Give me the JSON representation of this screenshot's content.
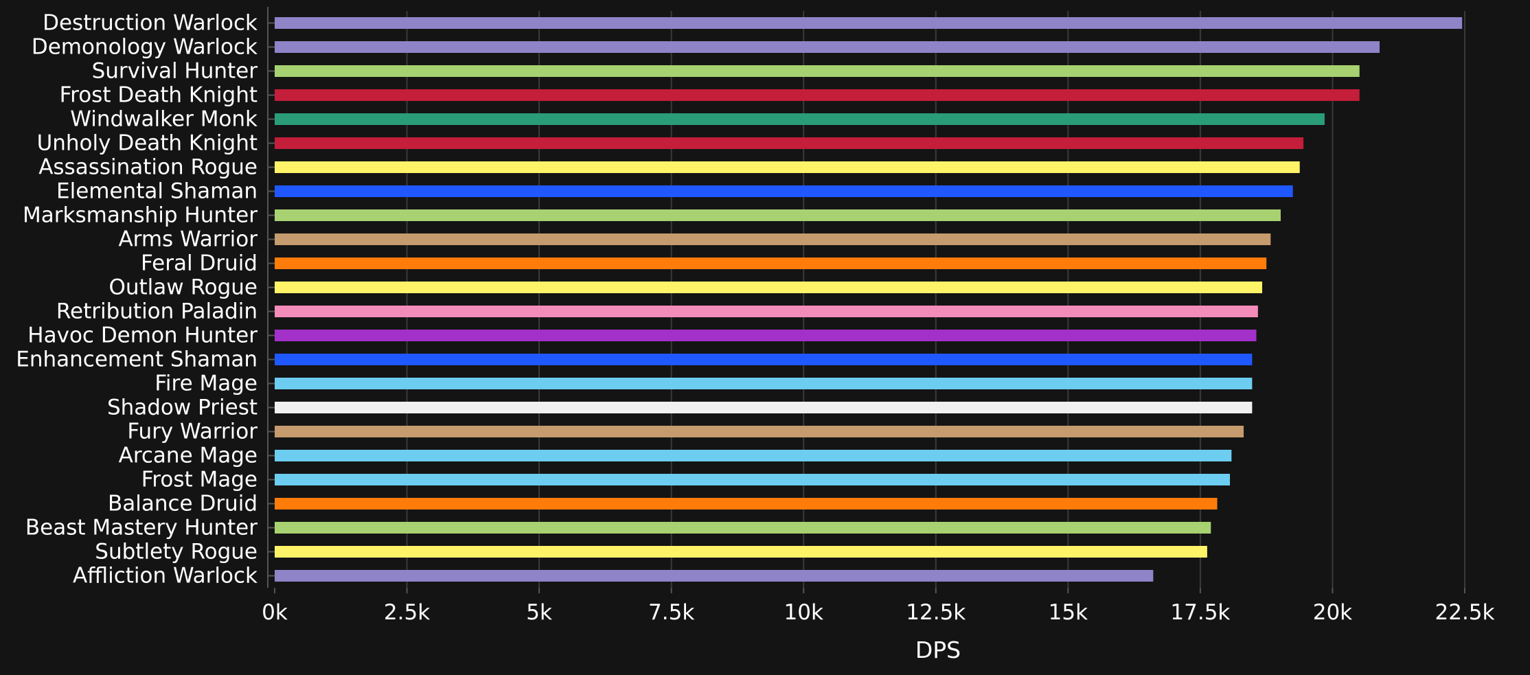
{
  "chart_data": {
    "type": "bar",
    "orientation": "horizontal",
    "categories": [
      "Destruction Warlock",
      "Demonology Warlock",
      "Survival Hunter",
      "Frost Death Knight",
      "Windwalker Monk",
      "Unholy Death Knight",
      "Assassination Rogue",
      "Elemental Shaman",
      "Marksmanship Hunter",
      "Arms Warrior",
      "Feral Druid",
      "Outlaw Rogue",
      "Retribution Paladin",
      "Havoc Demon Hunter",
      "Enhancement Shaman",
      "Fire Mage",
      "Shadow Priest",
      "Fury Warrior",
      "Arcane Mage",
      "Frost Mage",
      "Balance Druid",
      "Beast Mastery Hunter",
      "Subtlety Rogue",
      "Affliction Warlock"
    ],
    "values": [
      22450,
      20890,
      20510,
      20510,
      19850,
      19450,
      19380,
      19250,
      19020,
      18830,
      18750,
      18670,
      18590,
      18560,
      18480,
      18480,
      18480,
      18320,
      18090,
      18060,
      17820,
      17700,
      17630,
      16610
    ],
    "colors": [
      "#8f84c8",
      "#8f84c8",
      "#a8d271",
      "#c41e3a",
      "#2a9d78",
      "#c41e3a",
      "#fff468",
      "#1f58ff",
      "#a8d271",
      "#c69b6d",
      "#ff7c0a",
      "#fff468",
      "#f48cba",
      "#a330c9",
      "#1f58ff",
      "#6ccdf0",
      "#f0f0f0",
      "#c69b6d",
      "#6ccdf0",
      "#6ccdf0",
      "#ff7c0a",
      "#a8d271",
      "#fff468",
      "#8f84c8"
    ],
    "xlabel": "DPS",
    "ylabel": "",
    "xlim": [
      0,
      22500
    ],
    "xticks": [
      0,
      2500,
      5000,
      7500,
      10000,
      12500,
      15000,
      17500,
      20000,
      22500
    ],
    "xtick_labels": [
      "0k",
      "2.5k",
      "5k",
      "7.5k",
      "10k",
      "12.5k",
      "15k",
      "17.5k",
      "20k",
      "22.5k"
    ],
    "grid": true,
    "legend": "none",
    "background_color": "#141414",
    "grid_color": "#3a3a3a",
    "text_color": "#ffffff"
  }
}
